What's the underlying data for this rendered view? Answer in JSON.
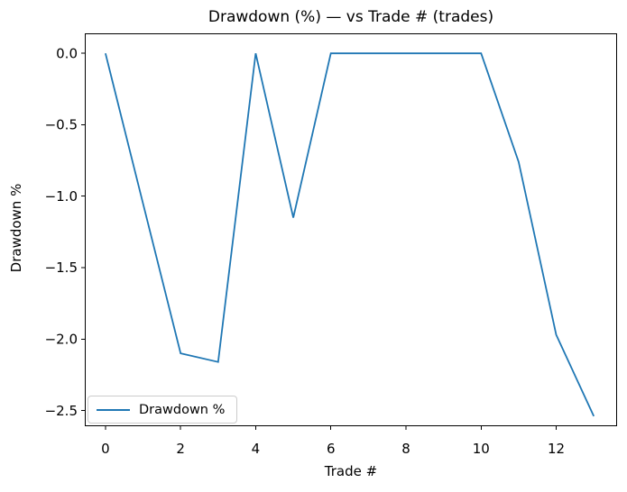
{
  "chart_data": {
    "type": "line",
    "title": "Drawdown (%) — vs Trade # (trades)",
    "xlabel": "Trade #",
    "ylabel": "Drawdown %",
    "x": [
      0,
      1,
      2,
      3,
      4,
      5,
      6,
      7,
      8,
      9,
      10,
      11,
      12,
      13
    ],
    "series": [
      {
        "name": "Drawdown %",
        "color": "#1f77b4",
        "values": [
          0.0,
          -1.05,
          -2.1,
          -2.16,
          0.0,
          -1.15,
          0.0,
          0.0,
          0.0,
          0.0,
          0.0,
          -0.76,
          -1.97,
          -2.54
        ]
      }
    ],
    "xticks": [
      0,
      2,
      4,
      6,
      8,
      10,
      12
    ],
    "xtick_labels": [
      "0",
      "2",
      "4",
      "6",
      "8",
      "10",
      "12"
    ],
    "yticks": [
      0.0,
      -0.5,
      -1.0,
      -1.5,
      -2.0,
      -2.5
    ],
    "ytick_labels": [
      "0.0",
      "−0.5",
      "−1.0",
      "−1.5",
      "−2.0",
      "−2.5"
    ],
    "xlim": [
      -0.55,
      13.62
    ],
    "ylim": [
      -2.61,
      0.14
    ],
    "grid": false,
    "legend": {
      "position": "lower left",
      "entries": [
        "Drawdown %"
      ]
    },
    "axis_color": "#000000",
    "background_color": "#ffffff"
  }
}
